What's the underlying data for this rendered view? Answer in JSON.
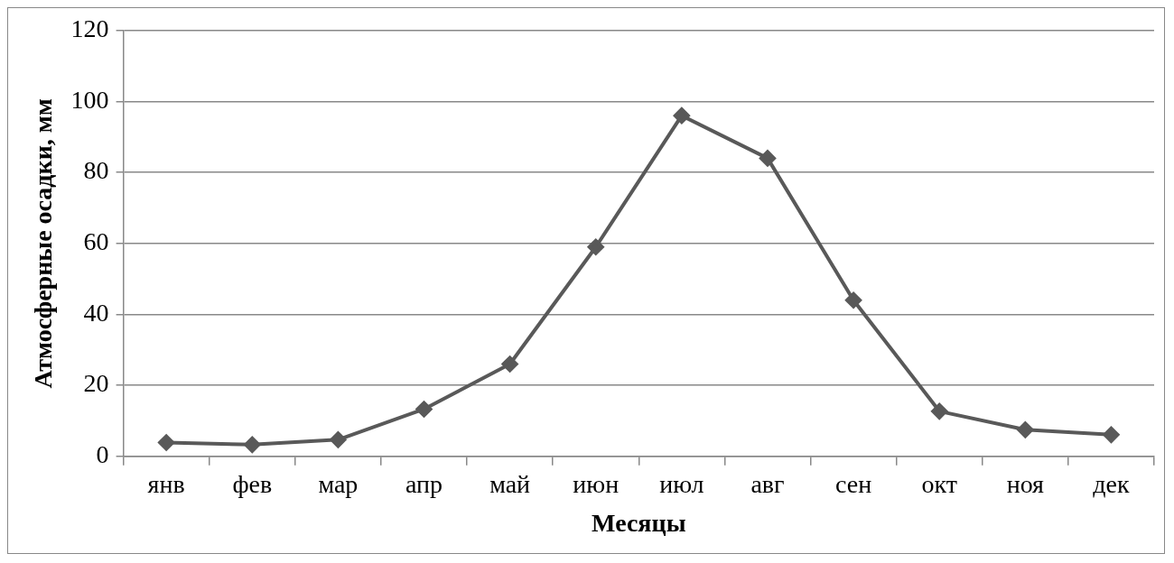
{
  "chart_data": {
    "type": "line",
    "xlabel": "Месяцы",
    "ylabel": "Атмосферные осадки, мм",
    "categories": [
      "янв",
      "фев",
      "мар",
      "апр",
      "май",
      "июн",
      "июл",
      "авг",
      "сен",
      "окт",
      "ноя",
      "дек"
    ],
    "series": [
      {
        "color": "#595959",
        "values": [
          3.9,
          3.3,
          4.7,
          13.3,
          26,
          59,
          96,
          84,
          44,
          12.7,
          7.5,
          6.1
        ]
      }
    ],
    "ylim": [
      0,
      120
    ],
    "yticks": [
      0,
      20,
      40,
      60,
      80,
      100,
      120
    ],
    "grid": "y",
    "legend": false,
    "marker": "diamond",
    "line_style": "solid"
  }
}
